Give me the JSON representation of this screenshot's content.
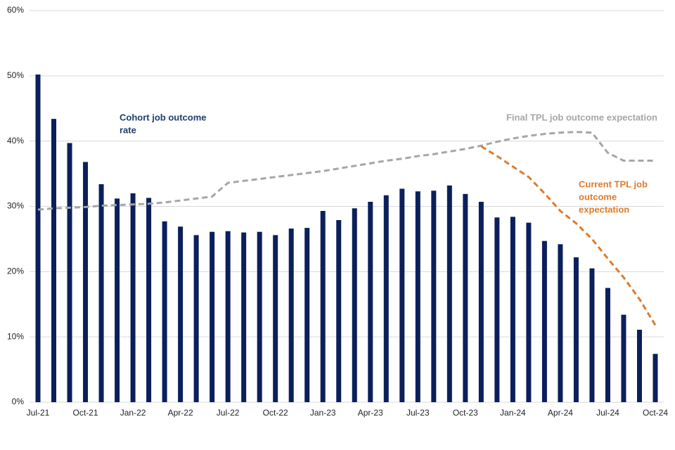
{
  "chart_data": {
    "type": "bar",
    "categories": [
      "Jul-21",
      null,
      null,
      "Oct-21",
      null,
      null,
      "Jan-22",
      null,
      null,
      "Apr-22",
      null,
      null,
      "Jul-22",
      null,
      null,
      "Oct-22",
      null,
      null,
      "Jan-23",
      null,
      null,
      "Apr-23",
      null,
      null,
      "Jul-23",
      null,
      null,
      "Oct-23",
      null,
      null,
      "Jan-24",
      null,
      null,
      "Apr-24",
      null,
      null,
      "Jul-24",
      null,
      null,
      "Oct-24"
    ],
    "series": [
      {
        "type": "bar",
        "color": "#0b1f5c",
        "values": [
          50.2,
          43.4,
          39.7,
          36.8,
          33.4,
          31.2,
          32.0,
          31.3,
          27.7,
          26.9,
          25.6,
          26.1,
          26.2,
          26.0,
          26.1,
          25.6,
          26.6,
          26.7,
          29.3,
          27.9,
          29.7,
          30.7,
          31.7,
          32.7,
          32.3,
          32.4,
          33.2,
          31.9,
          30.7,
          28.3,
          28.4,
          27.5,
          24.7,
          24.2,
          22.2,
          20.5,
          17.5,
          13.4,
          11.1,
          7.4
        ]
      },
      {
        "type": "line",
        "dashed": true,
        "color": "#a6a6a6",
        "values": [
          29.5,
          29.7,
          29.8,
          29.9,
          30.1,
          30.2,
          30.3,
          30.4,
          30.6,
          30.9,
          31.2,
          31.5,
          33.6,
          33.9,
          34.2,
          34.5,
          34.8,
          35.1,
          35.4,
          35.8,
          36.2,
          36.6,
          37.0,
          37.3,
          37.7,
          38.0,
          38.4,
          38.8,
          39.3,
          39.9,
          40.4,
          40.8,
          41.1,
          41.3,
          41.4,
          41.3,
          38.2,
          37.0,
          37.0,
          37.0
        ]
      },
      {
        "type": "line",
        "dashed": true,
        "color": "#e07b2a",
        "values": [
          null,
          null,
          null,
          null,
          null,
          null,
          null,
          null,
          null,
          null,
          null,
          null,
          null,
          null,
          null,
          null,
          null,
          null,
          null,
          null,
          null,
          null,
          null,
          null,
          null,
          null,
          null,
          null,
          39.2,
          37.7,
          36.1,
          34.5,
          32.0,
          29.3,
          27.4,
          25.0,
          22.0,
          19.1,
          15.8,
          11.8
        ]
      }
    ],
    "annotations": [
      {
        "lines": [
          "Cohort job outcome",
          "rate"
        ],
        "color": "#1f3d6b",
        "at": 5
      },
      {
        "lines": [
          "Final TPL job outcome expectation"
        ],
        "color": "#a6a6a6",
        "at": 30
      },
      {
        "lines": [
          "Current TPL job",
          "outcome",
          "expectation"
        ],
        "color": "#e07b2a",
        "at": 34
      }
    ],
    "ylim": [
      0,
      60
    ],
    "yticks": [
      {
        "value": 0,
        "label": "0%"
      },
      {
        "value": 10,
        "label": "10%"
      },
      {
        "value": 20,
        "label": "20%"
      },
      {
        "value": 30,
        "label": "30%"
      },
      {
        "value": 40,
        "label": "40%"
      },
      {
        "value": 50,
        "label": "50%"
      },
      {
        "value": 60,
        "label": "60%"
      }
    ],
    "grid": true
  }
}
